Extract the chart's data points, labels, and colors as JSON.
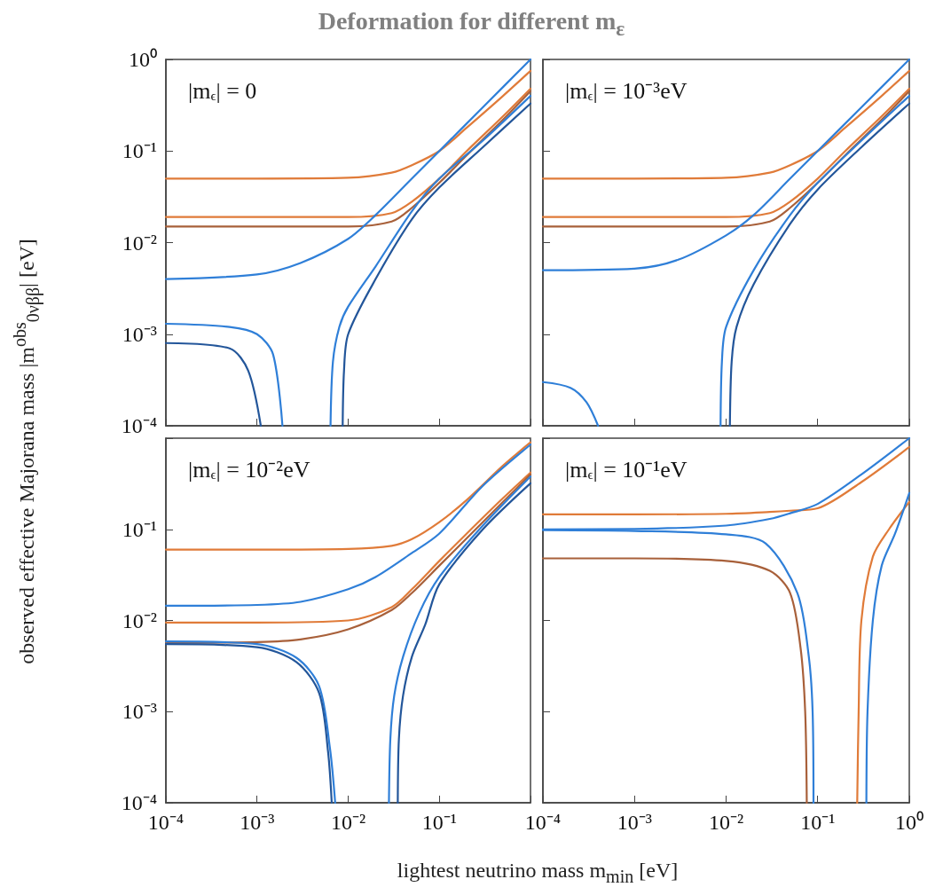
{
  "chart_data": [
    {
      "type": "line",
      "title": "Deformation for different m$_{ε}$",
      "ylabel": "observed effective Majorana mass |m$^{obs}$$_{0νββ}$| [eV]",
      "xlabel": "lightest neutrino mass m$_{min}$ [eV]",
      "annotations": [
        "|m$_{ϵ}$| = 0"
      ],
      "log": "xy",
      "tick_labels": "y",
      "xlim": [
        0.0001,
        1
      ],
      "ylim": [
        0.0001,
        1
      ],
      "xticks": [
        {
          "value": 0.0001,
          "label": null
        },
        {
          "value": 0.001,
          "label": null
        },
        {
          "value": 0.01,
          "label": null
        },
        {
          "value": 0.1,
          "label": null
        },
        {
          "value": 1,
          "label": null
        }
      ],
      "yticks": [
        {
          "value": 0.0001,
          "label": "10⁻⁴"
        },
        {
          "value": 0.001,
          "label": "10⁻³"
        },
        {
          "value": 0.01,
          "label": "10⁻²"
        },
        {
          "value": 0.1,
          "label": "10⁻¹"
        },
        {
          "value": 1,
          "label": "10⁰"
        }
      ],
      "series": [
        {
          "color": "#e07b39",
          "x": [
            0.0001,
            0.001,
            0.01,
            0.03,
            0.05,
            0.1,
            0.2,
            0.5,
            1
          ],
          "values": [
            0.05,
            0.05,
            0.051,
            0.058,
            0.07,
            0.1,
            0.18,
            0.4,
            0.75
          ]
        },
        {
          "color": "#e07b39",
          "x": [
            0.0001,
            0.001,
            0.01,
            0.03,
            0.05,
            0.1,
            0.2,
            0.5,
            1
          ],
          "values": [
            0.019,
            0.019,
            0.019,
            0.021,
            0.028,
            0.05,
            0.1,
            0.24,
            0.48
          ]
        },
        {
          "color": "#a8603a",
          "x": [
            0.0001,
            0.001,
            0.01,
            0.03,
            0.05,
            0.1,
            0.2,
            0.5,
            1
          ],
          "values": [
            0.015,
            0.015,
            0.015,
            0.017,
            0.024,
            0.045,
            0.09,
            0.22,
            0.45
          ]
        },
        {
          "color": "#2f7fd8",
          "x": [
            0.0001,
            0.001,
            0.003,
            0.01,
            0.02,
            0.05,
            0.1,
            0.3,
            1
          ],
          "values": [
            0.004,
            0.0045,
            0.006,
            0.011,
            0.02,
            0.05,
            0.1,
            0.3,
            1
          ]
        },
        {
          "color": "#2f7fd8",
          "x": [
            0.0001,
            0.0005,
            0.001,
            0.0015,
            0.0019
          ],
          "values": [
            0.0013,
            0.0012,
            0.001,
            0.0006,
            0.0001
          ]
        },
        {
          "color": "#23569a",
          "x": [
            0.0001,
            0.0005,
            0.0008,
            0.0011
          ],
          "values": [
            0.0008,
            0.0007,
            0.0004,
            0.0001
          ]
        },
        {
          "color": "#2f7fd8",
          "x": [
            0.0064,
            0.0068,
            0.008,
            0.01,
            0.02,
            0.05,
            0.1,
            0.3,
            1
          ],
          "values": [
            0.0001,
            0.0005,
            0.0012,
            0.002,
            0.0055,
            0.022,
            0.05,
            0.13,
            0.4
          ]
        },
        {
          "color": "#23569a",
          "x": [
            0.0087,
            0.009,
            0.01,
            0.02,
            0.05,
            0.1,
            0.3,
            1
          ],
          "values": [
            0.0001,
            0.0004,
            0.001,
            0.004,
            0.018,
            0.04,
            0.11,
            0.33
          ]
        }
      ]
    },
    {
      "type": "line",
      "annotations": [
        "|m$_{ϵ}$| = 10⁻³eV"
      ],
      "log": "xy",
      "tick_labels": false,
      "xlim": [
        0.0001,
        1
      ],
      "ylim": [
        0.0001,
        1
      ],
      "xticks": [
        {
          "value": 0.0001,
          "label": null
        },
        {
          "value": 0.001,
          "label": null
        },
        {
          "value": 0.01,
          "label": null
        },
        {
          "value": 0.1,
          "label": null
        },
        {
          "value": 1,
          "label": null
        }
      ],
      "series": [
        {
          "color": "#e07b39",
          "x": [
            0.0001,
            0.001,
            0.01,
            0.03,
            0.05,
            0.1,
            0.2,
            0.5,
            1
          ],
          "values": [
            0.05,
            0.05,
            0.051,
            0.058,
            0.07,
            0.1,
            0.18,
            0.4,
            0.75
          ]
        },
        {
          "color": "#e07b39",
          "x": [
            0.0001,
            0.001,
            0.01,
            0.03,
            0.05,
            0.1,
            0.2,
            0.5,
            1
          ],
          "values": [
            0.019,
            0.019,
            0.019,
            0.021,
            0.028,
            0.05,
            0.1,
            0.24,
            0.48
          ]
        },
        {
          "color": "#a8603a",
          "x": [
            0.0001,
            0.001,
            0.01,
            0.03,
            0.05,
            0.1,
            0.2,
            0.5,
            1
          ],
          "values": [
            0.015,
            0.015,
            0.015,
            0.017,
            0.024,
            0.045,
            0.09,
            0.22,
            0.45
          ]
        },
        {
          "color": "#2f7fd8",
          "x": [
            0.0001,
            0.001,
            0.003,
            0.01,
            0.02,
            0.05,
            0.1,
            0.3,
            1
          ],
          "values": [
            0.005,
            0.0052,
            0.0065,
            0.012,
            0.02,
            0.05,
            0.1,
            0.3,
            1
          ]
        },
        {
          "color": "#2f7fd8",
          "x": [
            0.0001,
            0.0002,
            0.0003,
            0.0004
          ],
          "values": [
            0.0003,
            0.00026,
            0.00018,
            0.0001
          ]
        },
        {
          "color": "#2f7fd8",
          "x": [
            0.0087,
            0.009,
            0.01,
            0.02,
            0.05,
            0.1,
            0.3,
            1
          ],
          "values": [
            0.0001,
            0.0005,
            0.0012,
            0.005,
            0.02,
            0.045,
            0.13,
            0.4
          ]
        },
        {
          "color": "#23569a",
          "x": [
            0.011,
            0.0115,
            0.013,
            0.02,
            0.05,
            0.1,
            0.3,
            1
          ],
          "values": [
            0.0001,
            0.0005,
            0.0012,
            0.0035,
            0.016,
            0.038,
            0.11,
            0.33
          ]
        }
      ]
    },
    {
      "type": "line",
      "annotations": [
        "|m$_{ϵ}$| = 10⁻²eV"
      ],
      "log": "xy",
      "xlim": [
        0.0001,
        1
      ],
      "ylim": [
        0.0001,
        1
      ],
      "xticks": [
        {
          "value": 0.0001,
          "label": "10⁻⁴"
        },
        {
          "value": 0.001,
          "label": "10⁻³"
        },
        {
          "value": 0.01,
          "label": "10⁻²"
        },
        {
          "value": 0.1,
          "label": "10⁻¹"
        },
        {
          "value": 1,
          "label": null
        }
      ],
      "yticks": [
        {
          "value": 0.0001,
          "label": "10⁻⁴"
        },
        {
          "value": 0.001,
          "label": "10⁻³"
        },
        {
          "value": 0.01,
          "label": "10⁻²"
        },
        {
          "value": 0.1,
          "label": "10⁻¹"
        },
        {
          "value": 1,
          "label": null
        }
      ],
      "series": [
        {
          "color": "#e07b39",
          "x": [
            0.0001,
            0.001,
            0.01,
            0.03,
            0.05,
            0.1,
            0.2,
            0.5,
            1
          ],
          "values": [
            0.06,
            0.06,
            0.061,
            0.066,
            0.078,
            0.12,
            0.21,
            0.5,
            0.9
          ]
        },
        {
          "color": "#e07b39",
          "x": [
            0.0001,
            0.001,
            0.01,
            0.03,
            0.05,
            0.1,
            0.2,
            0.5,
            1
          ],
          "values": [
            0.0095,
            0.0095,
            0.01,
            0.014,
            0.022,
            0.045,
            0.09,
            0.22,
            0.42
          ]
        },
        {
          "color": "#a8603a",
          "x": [
            0.0001,
            0.001,
            0.003,
            0.01,
            0.03,
            0.05,
            0.1,
            0.2,
            0.5,
            1
          ],
          "values": [
            0.0057,
            0.0058,
            0.0062,
            0.008,
            0.013,
            0.02,
            0.04,
            0.08,
            0.2,
            0.4
          ]
        },
        {
          "color": "#2f7fd8",
          "x": [
            0.0001,
            0.001,
            0.003,
            0.01,
            0.02,
            0.05,
            0.1,
            0.3,
            1
          ],
          "values": [
            0.0145,
            0.0148,
            0.016,
            0.022,
            0.03,
            0.055,
            0.09,
            0.3,
            0.85
          ]
        },
        {
          "color": "#2f7fd8",
          "x": [
            0.0001,
            0.001,
            0.0027,
            0.0048,
            0.0063,
            0.0072
          ],
          "values": [
            0.0059,
            0.0055,
            0.0039,
            0.0019,
            0.0004,
            0.0001
          ]
        },
        {
          "color": "#23569a",
          "x": [
            0.0001,
            0.001,
            0.0027,
            0.0048,
            0.006,
            0.0066
          ],
          "values": [
            0.0055,
            0.0051,
            0.0035,
            0.0016,
            0.00037,
            0.0001
          ]
        },
        {
          "color": "#2f7fd8",
          "x": [
            0.028,
            0.029,
            0.032,
            0.04,
            0.06,
            0.1,
            0.3,
            1
          ],
          "values": [
            0.0001,
            0.0005,
            0.0015,
            0.004,
            0.012,
            0.03,
            0.11,
            0.38
          ]
        },
        {
          "color": "#23569a",
          "x": [
            0.035,
            0.036,
            0.04,
            0.05,
            0.07,
            0.1,
            0.3,
            1
          ],
          "values": [
            0.0001,
            0.0005,
            0.0015,
            0.004,
            0.009,
            0.025,
            0.1,
            0.32
          ]
        }
      ]
    },
    {
      "type": "line",
      "annotations": [
        "|m$_{ϵ}$| = 10⁻¹eV"
      ],
      "log": "xy",
      "tick_labels": "x",
      "xlim": [
        0.0001,
        1
      ],
      "ylim": [
        0.0001,
        1
      ],
      "xticks": [
        {
          "value": 0.0001,
          "label": "10⁻⁴"
        },
        {
          "value": 0.001,
          "label": "10⁻³"
        },
        {
          "value": 0.01,
          "label": "10⁻²"
        },
        {
          "value": 0.1,
          "label": "10⁻¹"
        },
        {
          "value": 1,
          "label": "10⁰"
        }
      ],
      "series": [
        {
          "color": "#e07b39",
          "x": [
            0.0001,
            0.001,
            0.01,
            0.03,
            0.05,
            0.1,
            0.3,
            1
          ],
          "values": [
            0.146,
            0.146,
            0.148,
            0.155,
            0.16,
            0.17,
            0.33,
            0.8
          ]
        },
        {
          "color": "#2f7fd8",
          "x": [
            0.0001,
            0.001,
            0.01,
            0.03,
            0.05,
            0.1,
            0.3,
            1
          ],
          "values": [
            0.1,
            0.101,
            0.11,
            0.13,
            0.15,
            0.19,
            0.4,
            1
          ]
        },
        {
          "color": "#2f7fd8",
          "x": [
            0.0001,
            0.001,
            0.01,
            0.027,
            0.06,
            0.08,
            0.088,
            0.09
          ],
          "values": [
            0.098,
            0.096,
            0.088,
            0.07,
            0.02,
            0.004,
            0.001,
            0.0001
          ]
        },
        {
          "color": "#a8603a",
          "x": [
            0.0001,
            0.001,
            0.01,
            0.03,
            0.05,
            0.065,
            0.073,
            0.076
          ],
          "values": [
            0.048,
            0.048,
            0.045,
            0.035,
            0.02,
            0.005,
            0.001,
            0.0001
          ]
        },
        {
          "color": "#e07b39",
          "x": [
            0.27,
            0.28,
            0.3,
            0.4,
            0.6,
            1
          ],
          "values": [
            0.0001,
            0.001,
            0.01,
            0.05,
            0.1,
            0.2
          ]
        },
        {
          "color": "#2f7fd8",
          "x": [
            0.34,
            0.35,
            0.4,
            0.5,
            0.7,
            1
          ],
          "values": [
            0.0001,
            0.001,
            0.01,
            0.04,
            0.09,
            0.25
          ]
        }
      ]
    }
  ]
}
